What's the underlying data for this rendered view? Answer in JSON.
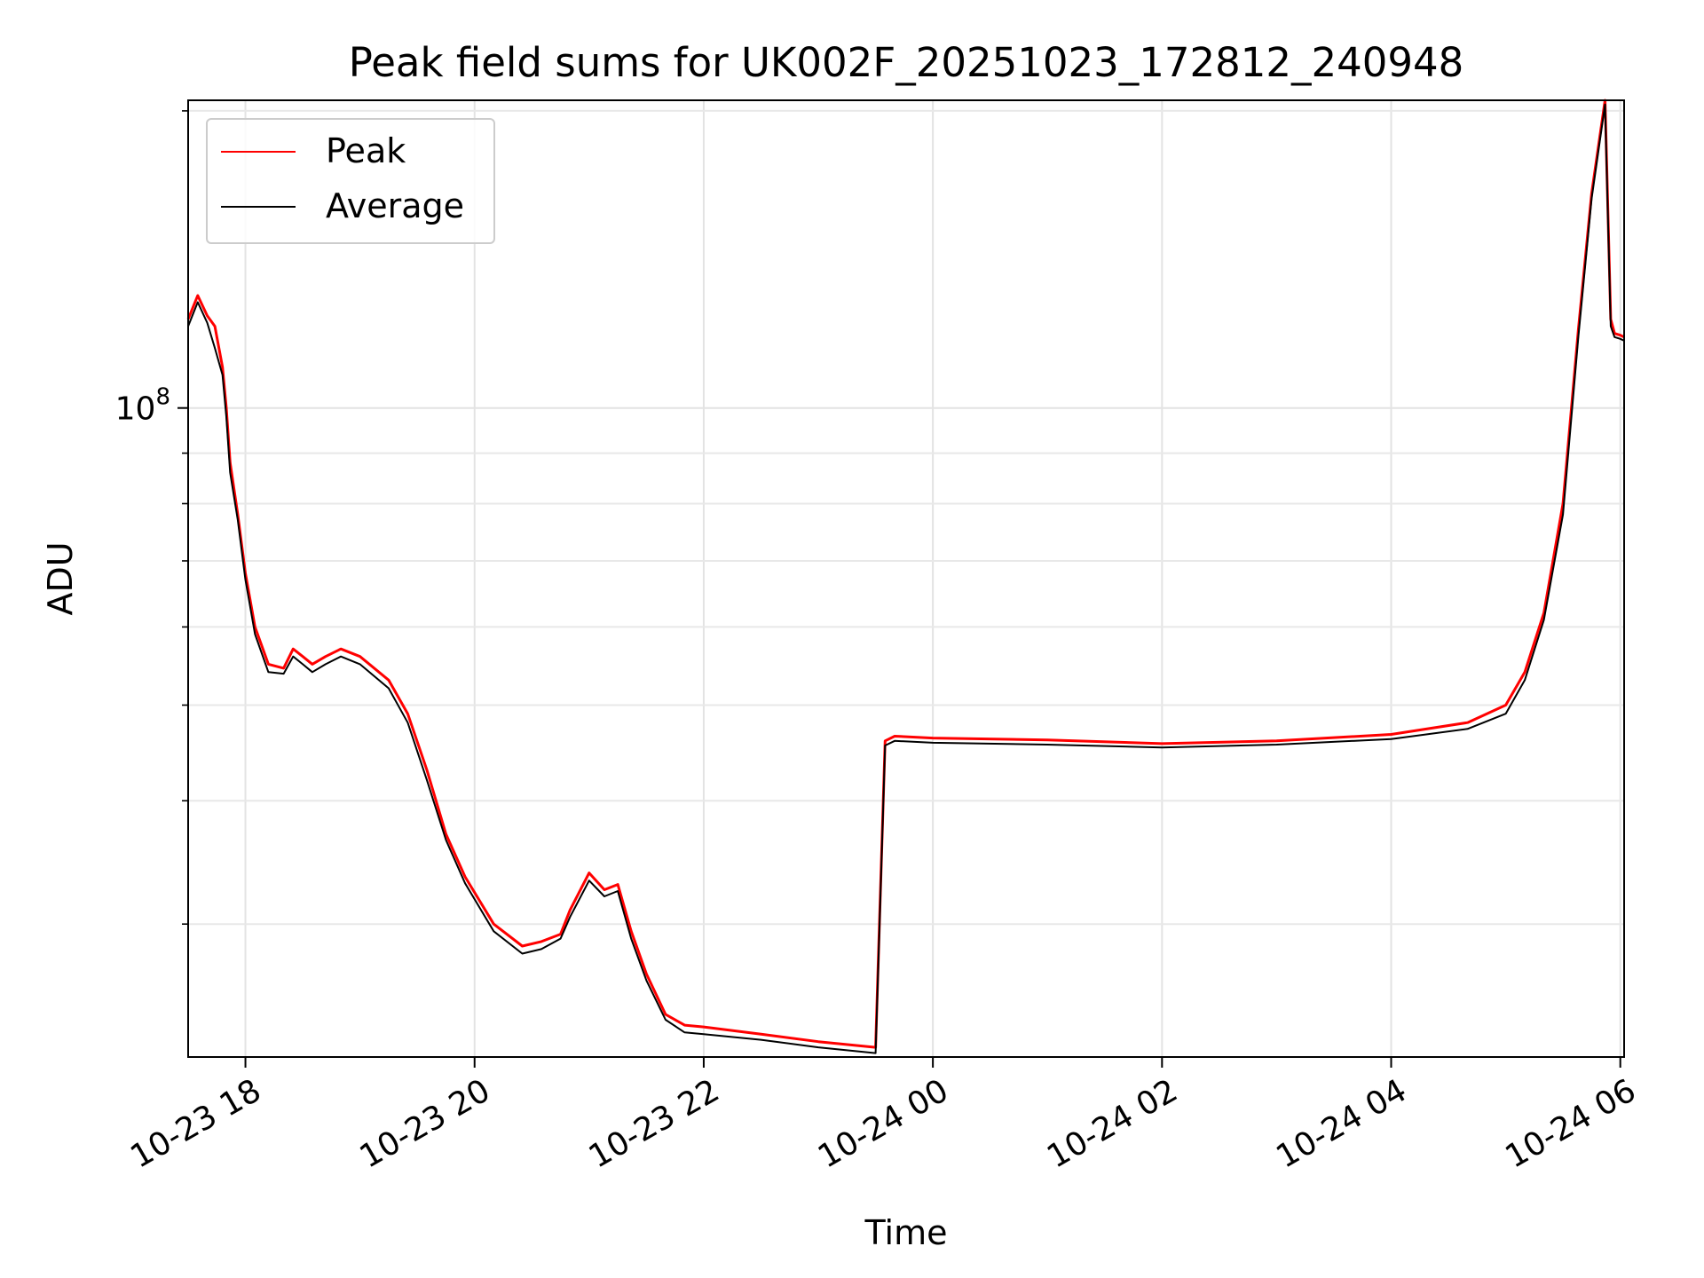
{
  "chart_data": {
    "type": "line",
    "title": "Peak field sums for UK002F_20251023_172812_240948",
    "xlabel": "Time",
    "ylabel": "ADU",
    "yscale": "log",
    "ylim": [
      22000000,
      205000000
    ],
    "xlim": [
      "2025-10-23 17:30",
      "2025-10-24 06:02"
    ],
    "grid": true,
    "legend_position": "top-left",
    "x_ticks": [
      "2025-10-23 18:00",
      "2025-10-23 20:00",
      "2025-10-23 22:00",
      "2025-10-24 00:00",
      "2025-10-24 02:00",
      "2025-10-24 04:00",
      "2025-10-24 06:00"
    ],
    "x_tick_labels": [
      "10-23 18",
      "10-23 20",
      "10-23 22",
      "10-24 00",
      "10-24 02",
      "10-24 04",
      "10-24 06"
    ],
    "y_major_ticks": [
      {
        "value": 100000000,
        "base": "10",
        "exp": "8"
      }
    ],
    "y_minor_ticks": [
      30000000,
      40000000,
      50000000,
      60000000,
      70000000,
      80000000,
      90000000,
      200000000
    ],
    "series": [
      {
        "name": "Peak",
        "color": "#ff0000",
        "x": [
          "2025-10-23 17:30",
          "2025-10-23 17:35",
          "2025-10-23 17:40",
          "2025-10-23 17:44",
          "2025-10-23 17:48",
          "2025-10-23 17:50",
          "2025-10-23 17:52",
          "2025-10-23 17:56",
          "2025-10-23 18:00",
          "2025-10-23 18:05",
          "2025-10-23 18:12",
          "2025-10-23 18:20",
          "2025-10-23 18:25",
          "2025-10-23 18:30",
          "2025-10-23 18:35",
          "2025-10-23 18:42",
          "2025-10-23 18:50",
          "2025-10-23 19:00",
          "2025-10-23 19:15",
          "2025-10-23 19:25",
          "2025-10-23 19:35",
          "2025-10-23 19:45",
          "2025-10-23 19:55",
          "2025-10-23 20:10",
          "2025-10-23 20:25",
          "2025-10-23 20:35",
          "2025-10-23 20:45",
          "2025-10-23 20:50",
          "2025-10-23 21:00",
          "2025-10-23 21:08",
          "2025-10-23 21:15",
          "2025-10-23 21:22",
          "2025-10-23 21:30",
          "2025-10-23 21:40",
          "2025-10-23 21:50",
          "2025-10-23 22:00",
          "2025-10-23 22:30",
          "2025-10-23 23:00",
          "2025-10-23 23:30",
          "2025-10-23 23:35",
          "2025-10-23 23:40",
          "2025-10-24 00:00",
          "2025-10-24 01:00",
          "2025-10-24 02:00",
          "2025-10-24 03:00",
          "2025-10-24 04:00",
          "2025-10-24 04:40",
          "2025-10-24 05:00",
          "2025-10-24 05:10",
          "2025-10-24 05:20",
          "2025-10-24 05:30",
          "2025-10-24 05:38",
          "2025-10-24 05:45",
          "2025-10-24 05:52",
          "2025-10-24 05:55",
          "2025-10-24 05:57",
          "2025-10-24 06:00",
          "2025-10-24 06:02"
        ],
        "values": [
          123000000,
          130000000,
          124000000,
          121000000,
          110000000,
          100000000,
          88000000,
          78000000,
          68000000,
          60000000,
          55000000,
          54500000,
          57000000,
          56000000,
          55000000,
          56000000,
          57000000,
          56000000,
          53000000,
          49000000,
          43000000,
          37000000,
          33500000,
          30000000,
          28500000,
          28800000,
          29300000,
          31000000,
          33800000,
          32500000,
          32900000,
          29500000,
          26700000,
          24300000,
          23700000,
          23600000,
          23200000,
          22800000,
          22500000,
          46000000,
          46500000,
          46300000,
          46100000,
          45700000,
          46000000,
          46700000,
          48000000,
          50000000,
          54000000,
          62000000,
          80000000,
          120000000,
          165000000,
          205000000,
          123000000,
          119000000,
          118500000,
          118000000
        ]
      },
      {
        "name": "Average",
        "color": "#000000",
        "x": [
          "2025-10-23 17:30",
          "2025-10-23 17:35",
          "2025-10-23 17:40",
          "2025-10-23 17:44",
          "2025-10-23 17:48",
          "2025-10-23 17:50",
          "2025-10-23 17:52",
          "2025-10-23 17:56",
          "2025-10-23 18:00",
          "2025-10-23 18:05",
          "2025-10-23 18:12",
          "2025-10-23 18:20",
          "2025-10-23 18:25",
          "2025-10-23 18:30",
          "2025-10-23 18:35",
          "2025-10-23 18:42",
          "2025-10-23 18:50",
          "2025-10-23 19:00",
          "2025-10-23 19:15",
          "2025-10-23 19:25",
          "2025-10-23 19:35",
          "2025-10-23 19:45",
          "2025-10-23 19:55",
          "2025-10-23 20:10",
          "2025-10-23 20:25",
          "2025-10-23 20:35",
          "2025-10-23 20:45",
          "2025-10-23 20:50",
          "2025-10-23 21:00",
          "2025-10-23 21:08",
          "2025-10-23 21:15",
          "2025-10-23 21:22",
          "2025-10-23 21:30",
          "2025-10-23 21:40",
          "2025-10-23 21:50",
          "2025-10-23 22:00",
          "2025-10-23 22:30",
          "2025-10-23 23:00",
          "2025-10-23 23:30",
          "2025-10-23 23:35",
          "2025-10-23 23:40",
          "2025-10-24 00:00",
          "2025-10-24 01:00",
          "2025-10-24 02:00",
          "2025-10-24 03:00",
          "2025-10-24 04:00",
          "2025-10-24 04:40",
          "2025-10-24 05:00",
          "2025-10-24 05:10",
          "2025-10-24 05:20",
          "2025-10-24 05:30",
          "2025-10-24 05:38",
          "2025-10-24 05:45",
          "2025-10-24 05:52",
          "2025-10-24 05:55",
          "2025-10-24 05:57",
          "2025-10-24 06:00",
          "2025-10-24 06:02"
        ],
        "values": [
          121000000,
          128000000,
          122000000,
          115000000,
          108000000,
          98000000,
          86000000,
          77000000,
          67000000,
          59000000,
          54000000,
          53800000,
          56000000,
          55000000,
          54000000,
          55000000,
          56000000,
          55000000,
          52000000,
          48000000,
          42000000,
          36500000,
          33000000,
          29500000,
          28000000,
          28300000,
          29000000,
          30500000,
          33200000,
          32000000,
          32400000,
          29000000,
          26300000,
          24000000,
          23300000,
          23200000,
          22900000,
          22500000,
          22200000,
          45500000,
          46000000,
          45800000,
          45600000,
          45300000,
          45600000,
          46200000,
          47300000,
          49000000,
          53000000,
          61000000,
          78000000,
          118000000,
          163000000,
          203000000,
          121000000,
          118000000,
          117500000,
          117000000
        ]
      }
    ]
  }
}
